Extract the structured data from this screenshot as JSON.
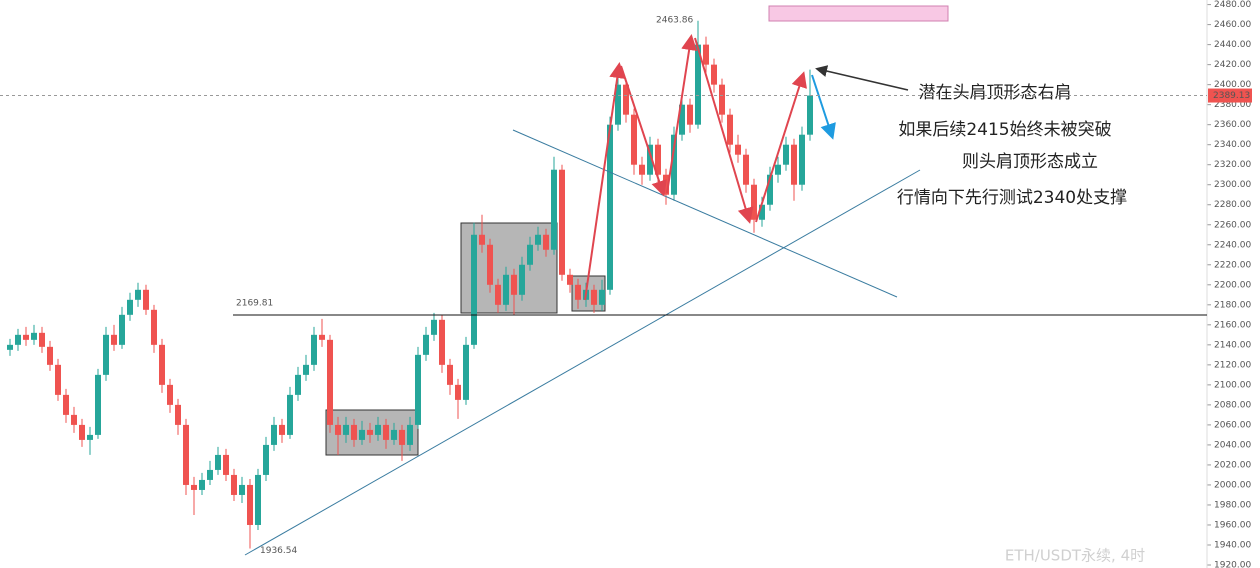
{
  "chart_data": {
    "type": "candlestick",
    "up_color": "#26a69a",
    "down_color": "#ef5350",
    "open": [
      2135,
      2140,
      2150,
      2145,
      2152,
      2138,
      2120,
      2090,
      2070,
      2060,
      2045,
      2050,
      2110,
      2150,
      2140,
      2170,
      2185,
      2195,
      2175,
      2140,
      2100,
      2080,
      2060,
      2000,
      1995,
      2005,
      2015,
      2030,
      2010,
      1990,
      2000,
      1960,
      2010,
      2040,
      2060,
      2050,
      2090,
      2110,
      2120,
      2150,
      2145,
      2060,
      2050,
      2060,
      2045,
      2055,
      2050,
      2060,
      2045,
      2055,
      2040,
      2060,
      2130,
      2150,
      2165,
      2120,
      2100,
      2085,
      2140,
      2250,
      2240,
      2200,
      2180,
      2210,
      2190,
      2220,
      2240,
      2250,
      2235,
      2315,
      2210,
      2200,
      2185,
      2195,
      2180,
      2195,
      2360,
      2400,
      2370,
      2320,
      2310,
      2340,
      2310,
      2290,
      2350,
      2380,
      2360,
      2440,
      2420,
      2400,
      2370,
      2340,
      2330,
      2300,
      2265,
      2280,
      2310,
      2320,
      2340,
      2300,
      2350
    ],
    "high": [
      2146,
      2156,
      2158,
      2160,
      2158,
      2144,
      2126,
      2096,
      2078,
      2066,
      2058,
      2116,
      2158,
      2160,
      2178,
      2192,
      2202,
      2200,
      2180,
      2146,
      2106,
      2086,
      2066,
      2008,
      2012,
      2024,
      2038,
      2036,
      2016,
      2008,
      2006,
      2016,
      2048,
      2068,
      2066,
      2098,
      2118,
      2130,
      2158,
      2166,
      2150,
      2068,
      2068,
      2066,
      2064,
      2062,
      2068,
      2066,
      2062,
      2060,
      2068,
      2138,
      2158,
      2172,
      2170,
      2126,
      2106,
      2148,
      2262,
      2270,
      2246,
      2206,
      2218,
      2216,
      2228,
      2248,
      2258,
      2256,
      2328,
      2320,
      2216,
      2206,
      2202,
      2200,
      2205,
      2368,
      2412,
      2406,
      2376,
      2328,
      2348,
      2346,
      2316,
      2358,
      2388,
      2386,
      2463.86,
      2448,
      2426,
      2406,
      2376,
      2350,
      2336,
      2306,
      2288,
      2318,
      2328,
      2348,
      2346,
      2358,
      2415
    ],
    "low": [
      2129,
      2134,
      2139,
      2140,
      2132,
      2114,
      2084,
      2062,
      2052,
      2038,
      2030,
      2046,
      2104,
      2134,
      2136,
      2164,
      2178,
      2170,
      2132,
      2092,
      2072,
      2050,
      1990,
      1970,
      1990,
      2000,
      2010,
      2004,
      1984,
      1982,
      1936.54,
      1955,
      2004,
      2034,
      2042,
      2046,
      2084,
      2104,
      2114,
      2138,
      2052,
      2030,
      2042,
      2038,
      2040,
      2042,
      2044,
      2036,
      2040,
      2024,
      2034,
      2056,
      2124,
      2144,
      2112,
      2090,
      2066,
      2080,
      2136,
      2232,
      2192,
      2172,
      2174,
      2170,
      2184,
      2214,
      2234,
      2228,
      2230,
      2204,
      2192,
      2176,
      2178,
      2172,
      2174,
      2190,
      2354,
      2362,
      2310,
      2300,
      2304,
      2300,
      2280,
      2284,
      2344,
      2352,
      2356,
      2412,
      2392,
      2362,
      2332,
      2322,
      2292,
      2252,
      2258,
      2274,
      2302,
      2314,
      2284,
      2294,
      2344
    ],
    "close": [
      2140,
      2150,
      2145,
      2152,
      2138,
      2120,
      2090,
      2070,
      2060,
      2045,
      2050,
      2110,
      2150,
      2140,
      2170,
      2185,
      2195,
      2175,
      2140,
      2100,
      2080,
      2060,
      2000,
      1995,
      2005,
      2015,
      2030,
      2010,
      1990,
      2000,
      1960,
      2010,
      2040,
      2060,
      2050,
      2090,
      2110,
      2120,
      2150,
      2145,
      2060,
      2050,
      2060,
      2045,
      2055,
      2050,
      2060,
      2045,
      2055,
      2040,
      2060,
      2130,
      2150,
      2165,
      2120,
      2100,
      2085,
      2140,
      2250,
      2240,
      2200,
      2180,
      2210,
      2190,
      2220,
      2240,
      2250,
      2235,
      2315,
      2210,
      2200,
      2185,
      2195,
      2180,
      2195,
      2360,
      2400,
      2370,
      2320,
      2310,
      2340,
      2310,
      2290,
      2350,
      2380,
      2360,
      2440,
      2420,
      2400,
      2370,
      2340,
      2330,
      2300,
      2265,
      2280,
      2310,
      2320,
      2340,
      2300,
      2350,
      2389.13
    ],
    "ylim": [
      1920,
      2480
    ],
    "yticks": [
      {
        "value": 1920,
        "label": "1920.00"
      },
      {
        "value": 1940,
        "label": "1940.00"
      },
      {
        "value": 1960,
        "label": "1960.00"
      },
      {
        "value": 1980,
        "label": "1980.00"
      },
      {
        "value": 2000,
        "label": "2000.00"
      },
      {
        "value": 2020,
        "label": "2020.00"
      },
      {
        "value": 2040,
        "label": "2040.00"
      },
      {
        "value": 2060,
        "label": "2060.00"
      },
      {
        "value": 2080,
        "label": "2080.00"
      },
      {
        "value": 2100,
        "label": "2100.00"
      },
      {
        "value": 2120,
        "label": "2120.00"
      },
      {
        "value": 2140,
        "label": "2140.00"
      },
      {
        "value": 2160,
        "label": "2160.00"
      },
      {
        "value": 2180,
        "label": "2180.00"
      },
      {
        "value": 2200,
        "label": "2200.00"
      },
      {
        "value": 2220,
        "label": "2220.00"
      },
      {
        "value": 2240,
        "label": "2240.00"
      },
      {
        "value": 2260,
        "label": "2260.00"
      },
      {
        "value": 2280,
        "label": "2280.00"
      },
      {
        "value": 2300,
        "label": "2300.00"
      },
      {
        "value": 2320,
        "label": "2320.00"
      },
      {
        "value": 2340,
        "label": "2340.00"
      },
      {
        "value": 2360,
        "label": "2360.00"
      },
      {
        "value": 2380,
        "label": "2380.00"
      },
      {
        "value": 2400,
        "label": "2400.00"
      },
      {
        "value": 2420,
        "label": "2420.00"
      },
      {
        "value": 2440,
        "label": "2440.00"
      },
      {
        "value": 2460,
        "label": "2460.00"
      },
      {
        "value": 2480,
        "label": "2480.00"
      }
    ],
    "horizontal_line": 2169.81,
    "last_price": 2389.13,
    "annotations": [
      "潜在头肩顶形态右肩",
      "如果后续2415始终未被突破",
      "则头肩顶形态成立",
      "行情向下先行测试2340处支撑"
    ],
    "watermark": "ETH/USDT永续, 4时"
  }
}
